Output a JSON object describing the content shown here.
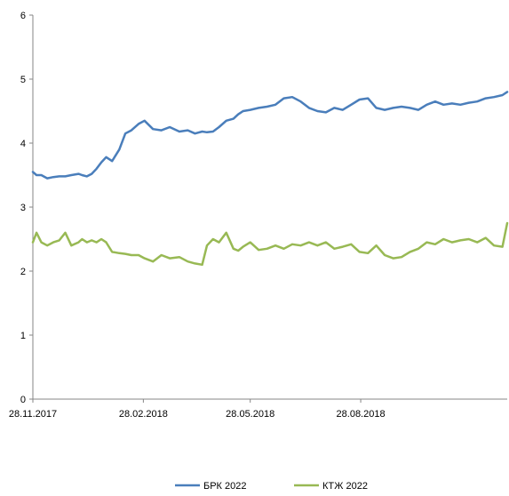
{
  "chart_data": {
    "type": "line",
    "title": "",
    "xlabel": "",
    "ylabel": "",
    "ylim": [
      0,
      6
    ],
    "yticks": [
      "0",
      "1",
      "2",
      "3",
      "4",
      "5",
      "6"
    ],
    "xlim": [
      "2017-11-28",
      "2018-12-28"
    ],
    "xticks": [
      {
        "date": "2017-11-28",
        "label": "28.11.2017"
      },
      {
        "date": "2018-02-28",
        "label": "28.02.2018"
      },
      {
        "date": "2018-05-28",
        "label": "28.05.2018"
      },
      {
        "date": "2018-08-28",
        "label": "28.08.2018"
      }
    ],
    "grid": false,
    "legend_position": "bottom",
    "series": [
      {
        "name": "БРК 2022",
        "color": "#4a7ebb",
        "x": [
          "2017-11-28",
          "2017-12-01",
          "2017-12-05",
          "2017-12-10",
          "2017-12-15",
          "2017-12-20",
          "2017-12-25",
          "2017-12-30",
          "2018-01-05",
          "2018-01-08",
          "2018-01-12",
          "2018-01-16",
          "2018-01-20",
          "2018-01-24",
          "2018-01-28",
          "2018-02-02",
          "2018-02-08",
          "2018-02-13",
          "2018-02-18",
          "2018-02-24",
          "2018-03-01",
          "2018-03-08",
          "2018-03-15",
          "2018-03-22",
          "2018-03-30",
          "2018-04-06",
          "2018-04-12",
          "2018-04-18",
          "2018-04-22",
          "2018-04-27",
          "2018-05-02",
          "2018-05-08",
          "2018-05-14",
          "2018-05-18",
          "2018-05-22",
          "2018-05-28",
          "2018-06-04",
          "2018-06-11",
          "2018-06-18",
          "2018-06-25",
          "2018-07-02",
          "2018-07-09",
          "2018-07-16",
          "2018-07-23",
          "2018-07-30",
          "2018-08-06",
          "2018-08-13",
          "2018-08-20",
          "2018-08-27",
          "2018-09-03",
          "2018-09-10",
          "2018-09-17",
          "2018-09-24",
          "2018-10-01",
          "2018-10-08",
          "2018-10-15",
          "2018-10-22",
          "2018-10-29",
          "2018-11-05",
          "2018-11-12",
          "2018-11-19",
          "2018-11-26",
          "2018-12-03",
          "2018-12-10",
          "2018-12-17",
          "2018-12-24",
          "2018-12-28"
        ],
        "values": [
          3.55,
          3.5,
          3.5,
          3.45,
          3.47,
          3.48,
          3.48,
          3.5,
          3.52,
          3.5,
          3.48,
          3.52,
          3.6,
          3.7,
          3.78,
          3.72,
          3.9,
          4.15,
          4.2,
          4.3,
          4.35,
          4.22,
          4.2,
          4.25,
          4.18,
          4.2,
          4.15,
          4.18,
          4.17,
          4.18,
          4.25,
          4.35,
          4.38,
          4.45,
          4.5,
          4.52,
          4.55,
          4.57,
          4.6,
          4.7,
          4.72,
          4.65,
          4.55,
          4.5,
          4.48,
          4.55,
          4.52,
          4.6,
          4.68,
          4.7,
          4.55,
          4.52,
          4.55,
          4.57,
          4.55,
          4.52,
          4.6,
          4.65,
          4.6,
          4.62,
          4.6,
          4.63,
          4.65,
          4.7,
          4.72,
          4.75,
          4.8
        ]
      },
      {
        "name": "КТЖ 2022",
        "color": "#98b954",
        "x": [
          "2017-11-28",
          "2017-12-01",
          "2017-12-05",
          "2017-12-10",
          "2017-12-15",
          "2017-12-20",
          "2017-12-25",
          "2017-12-30",
          "2018-01-05",
          "2018-01-08",
          "2018-01-12",
          "2018-01-16",
          "2018-01-20",
          "2018-01-24",
          "2018-01-28",
          "2018-02-02",
          "2018-02-08",
          "2018-02-13",
          "2018-02-18",
          "2018-02-24",
          "2018-03-01",
          "2018-03-08",
          "2018-03-15",
          "2018-03-22",
          "2018-03-30",
          "2018-04-06",
          "2018-04-12",
          "2018-04-18",
          "2018-04-22",
          "2018-04-27",
          "2018-05-02",
          "2018-05-08",
          "2018-05-14",
          "2018-05-18",
          "2018-05-22",
          "2018-05-28",
          "2018-06-04",
          "2018-06-11",
          "2018-06-18",
          "2018-06-25",
          "2018-07-02",
          "2018-07-09",
          "2018-07-16",
          "2018-07-23",
          "2018-07-30",
          "2018-08-06",
          "2018-08-13",
          "2018-08-20",
          "2018-08-27",
          "2018-09-03",
          "2018-09-10",
          "2018-09-17",
          "2018-09-24",
          "2018-10-01",
          "2018-10-08",
          "2018-10-15",
          "2018-10-22",
          "2018-10-29",
          "2018-11-05",
          "2018-11-12",
          "2018-11-19",
          "2018-11-26",
          "2018-12-03",
          "2018-12-10",
          "2018-12-17",
          "2018-12-24",
          "2018-12-28"
        ],
        "values": [
          2.45,
          2.6,
          2.45,
          2.4,
          2.45,
          2.48,
          2.6,
          2.4,
          2.45,
          2.5,
          2.45,
          2.48,
          2.45,
          2.5,
          2.45,
          2.3,
          2.28,
          2.27,
          2.25,
          2.25,
          2.2,
          2.15,
          2.25,
          2.2,
          2.22,
          2.15,
          2.12,
          2.1,
          2.4,
          2.5,
          2.45,
          2.6,
          2.35,
          2.32,
          2.38,
          2.45,
          2.33,
          2.35,
          2.4,
          2.35,
          2.42,
          2.4,
          2.45,
          2.4,
          2.45,
          2.35,
          2.38,
          2.42,
          2.3,
          2.28,
          2.4,
          2.25,
          2.2,
          2.22,
          2.3,
          2.35,
          2.45,
          2.42,
          2.5,
          2.45,
          2.48,
          2.5,
          2.45,
          2.52,
          2.4,
          2.38,
          2.75
        ]
      }
    ]
  }
}
